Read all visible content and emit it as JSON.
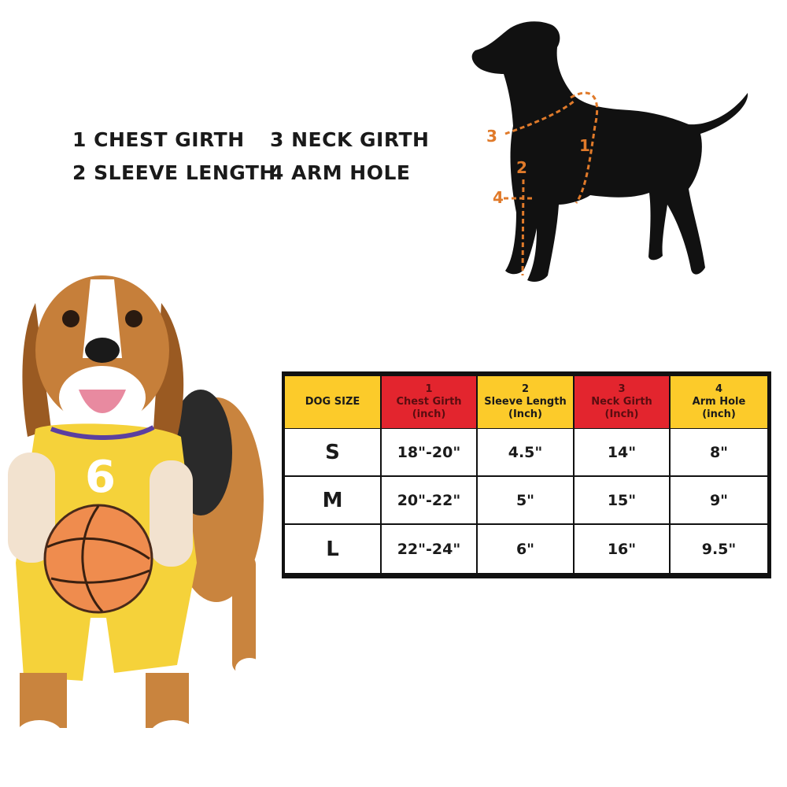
{
  "legend": {
    "items": [
      "1 CHEST GIRTH",
      "2 SLEEVE LENGTH",
      "3 NECK GIRTH",
      "4 ARM HOLE"
    ]
  },
  "diagram": {
    "markers": [
      "1",
      "2",
      "3",
      "4"
    ],
    "marker_color": "#e07a2a",
    "silhouette_color": "#111111"
  },
  "table": {
    "headers": [
      {
        "num": "",
        "label": "DOG SIZE",
        "unit": "",
        "color": "#fccb2a"
      },
      {
        "num": "1",
        "label": "Chest Girth",
        "unit": "(inch)",
        "color": "#e3252e"
      },
      {
        "num": "2",
        "label": "Sleeve Length",
        "unit": "(Inch)",
        "color": "#fccb2a"
      },
      {
        "num": "3",
        "label": "Neck Girth",
        "unit": "(Inch)",
        "color": "#e3252e"
      },
      {
        "num": "4",
        "label": "Arm Hole",
        "unit": "(inch)",
        "color": "#fccb2a"
      }
    ],
    "rows": [
      [
        "S",
        "18\"-20\"",
        "4.5\"",
        "14\"",
        "8\""
      ],
      [
        "M",
        "20\"-22\"",
        "5\"",
        "15\"",
        "9\""
      ],
      [
        "L",
        "22\"-24\"",
        "6\"",
        "16\"",
        "9.5\""
      ]
    ]
  },
  "photo": {
    "jersey_number": "6",
    "jersey_color": "#f5d23a",
    "trim_color": "#5b3fa0"
  }
}
